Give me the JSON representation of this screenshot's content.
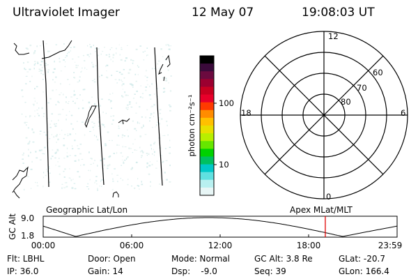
{
  "header": {
    "instrument": "Ultraviolet Imager",
    "date": "12 May 07",
    "time": "19:08:03 UT"
  },
  "colorbar": {
    "unit_label": "photon cm⁻²s⁻¹",
    "ticks": [
      "100",
      "10"
    ],
    "colors": [
      "#000000",
      "#3a0a3a",
      "#6b0a3f",
      "#9b0030",
      "#c80020",
      "#e8002a",
      "#ff3a00",
      "#ff8c00",
      "#ffc000",
      "#e8e000",
      "#b8ef00",
      "#66e600",
      "#00d200",
      "#00c060",
      "#00c8c8",
      "#60e0e0",
      "#b8f0f0",
      "#e8f6f6"
    ]
  },
  "polar": {
    "labels": {
      "top": "12",
      "bottom": "0",
      "left": "18",
      "right": "6"
    },
    "rings": [
      "60",
      "70",
      "80"
    ]
  },
  "timeline": {
    "left_title": "Geographic Lat/Lon",
    "right_title": "Apex  MLat/MLT",
    "axis_label": "GC Alt",
    "ymax": "9.0",
    "ymin": "1.8",
    "xticks": [
      "00:00",
      "06:00",
      "12:00",
      "18:00",
      "23:59"
    ],
    "current_time_hours": 19.13,
    "marker_color": "#e00000"
  },
  "status": {
    "flt": "Flt: LBHL",
    "ip": "IP: 36.0",
    "door": "Door: Open",
    "gain": "Gain: 14",
    "mode": "Mode: Normal",
    "dsp": "Dsp:    -9.0",
    "gcalt": "GC Alt: 3.8 Re",
    "seq": "Seq: 39",
    "glat": "GLat: -20.7",
    "glon": "GLon: 166.4"
  }
}
